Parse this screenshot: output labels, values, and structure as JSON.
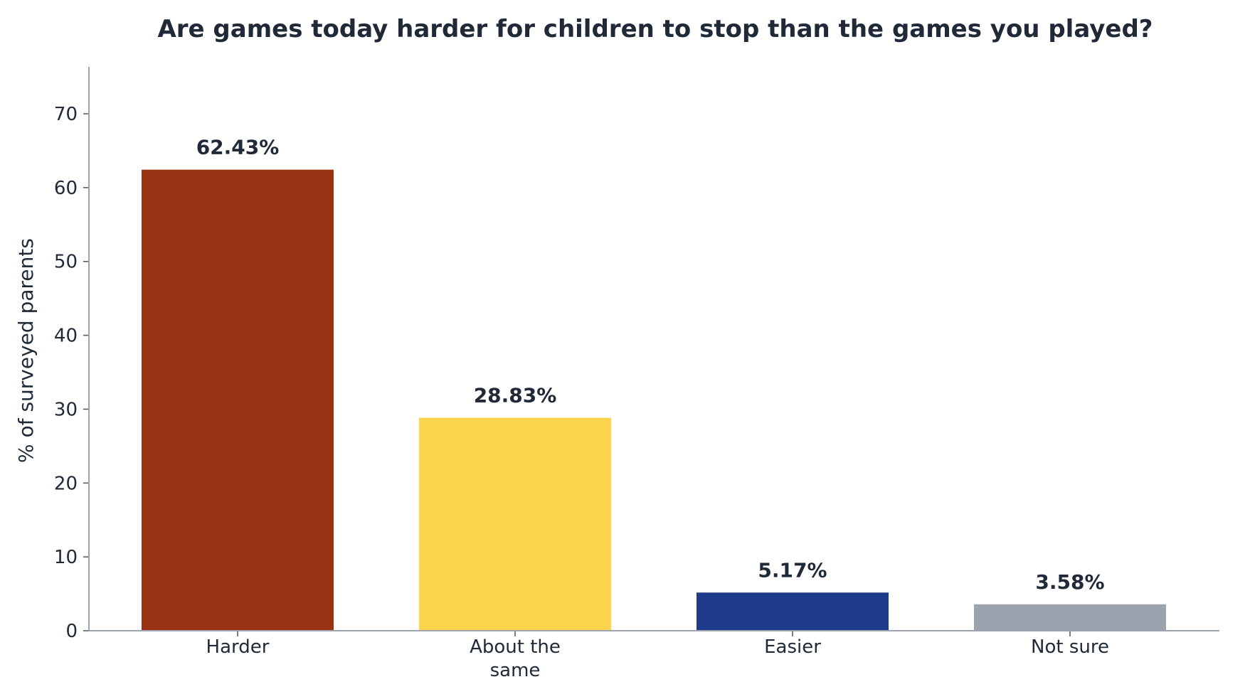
{
  "chart_data": {
    "type": "bar",
    "title": "Are games today harder for children to stop than the games you played?",
    "xlabel": "",
    "ylabel": "% of surveyed parents",
    "categories": [
      [
        "Harder"
      ],
      [
        "About the",
        "same"
      ],
      [
        "Easier"
      ],
      [
        "Not sure"
      ]
    ],
    "values": [
      62.43,
      28.83,
      5.17,
      3.58
    ],
    "value_labels": [
      "62.43%",
      "28.83%",
      "5.17%",
      "3.58%"
    ],
    "colors": [
      "#983313",
      "#fcd34d",
      "#1e3a8a",
      "#9ca3af"
    ],
    "ylim": [
      0,
      76
    ],
    "yticks": [
      0,
      10,
      20,
      30,
      40,
      50,
      60,
      70
    ],
    "grid": false,
    "legend": "none"
  }
}
